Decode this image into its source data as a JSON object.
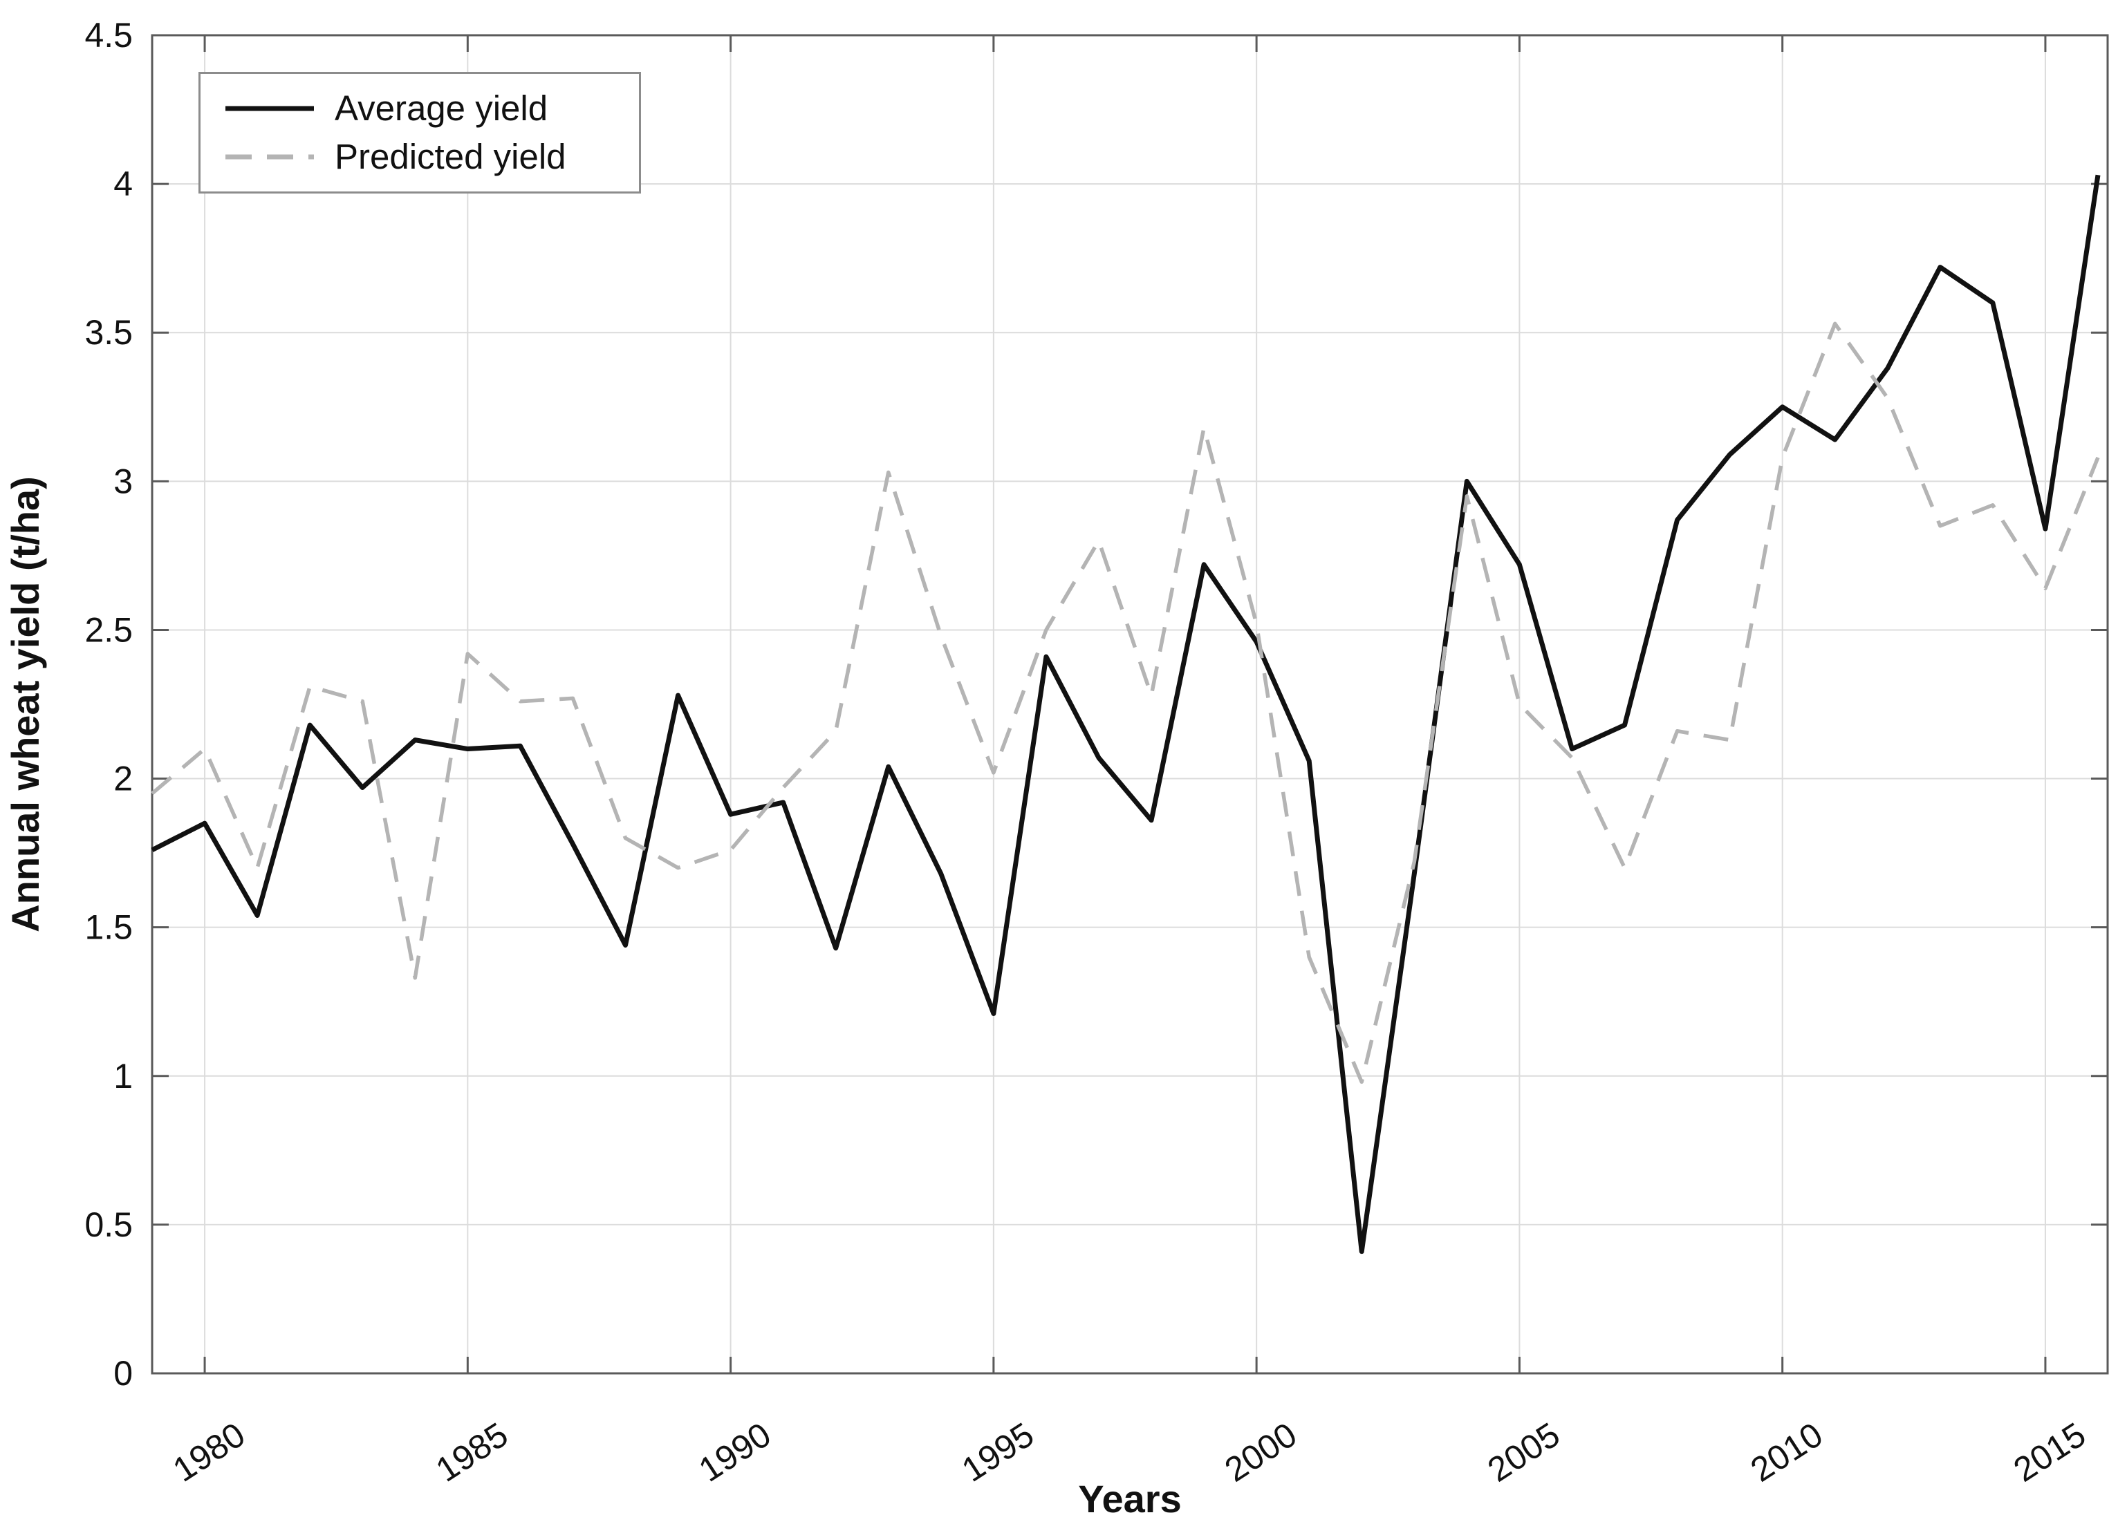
{
  "chart_data": {
    "type": "line",
    "title": "",
    "xlabel": "Years",
    "ylabel": "Annual wheat yield (t/ha)",
    "x": [
      1979,
      1980,
      1981,
      1982,
      1983,
      1984,
      1985,
      1986,
      1987,
      1988,
      1989,
      1990,
      1991,
      1992,
      1993,
      1994,
      1995,
      1996,
      1997,
      1998,
      1999,
      2000,
      2001,
      2002,
      2003,
      2004,
      2005,
      2006,
      2007,
      2008,
      2009,
      2010,
      2011,
      2012,
      2013,
      2014,
      2015,
      2016
    ],
    "series": [
      {
        "name": "Average yield",
        "color": "#111111",
        "style": "solid",
        "values": [
          1.76,
          1.85,
          1.54,
          2.18,
          1.97,
          2.13,
          2.1,
          2.11,
          1.78,
          1.44,
          2.28,
          1.88,
          1.92,
          1.43,
          2.04,
          1.68,
          1.21,
          2.41,
          2.07,
          1.86,
          2.72,
          2.46,
          2.06,
          0.41,
          1.68,
          3.0,
          2.72,
          2.1,
          2.18,
          2.87,
          3.09,
          3.25,
          3.14,
          3.38,
          3.72,
          3.6,
          2.84,
          4.03
        ]
      },
      {
        "name": "Predicted yield",
        "color": "#b4b4b4",
        "style": "dashed",
        "values": [
          1.95,
          2.1,
          1.7,
          2.31,
          2.26,
          1.33,
          2.42,
          2.26,
          2.27,
          1.8,
          1.7,
          1.76,
          1.97,
          2.16,
          3.03,
          2.48,
          2.02,
          2.5,
          2.8,
          2.28,
          3.18,
          2.52,
          1.4,
          0.98,
          1.72,
          2.95,
          2.25,
          2.07,
          1.7,
          2.16,
          2.13,
          3.08,
          3.53,
          3.28,
          2.85,
          2.92,
          2.64,
          3.08
        ]
      }
    ],
    "xticks": [
      1980,
      1985,
      1990,
      1995,
      2000,
      2005,
      2010,
      2015
    ],
    "yticks": [
      0,
      0.5,
      1,
      1.5,
      2,
      2.5,
      3,
      3.5,
      4,
      4.5
    ],
    "xlim": [
      1979,
      2016.2
    ],
    "ylim": [
      0,
      4.5
    ],
    "grid": true,
    "legend_position": "top-left"
  },
  "legend": {
    "items": [
      {
        "label": "Average yield"
      },
      {
        "label": "Predicted yield"
      }
    ]
  }
}
